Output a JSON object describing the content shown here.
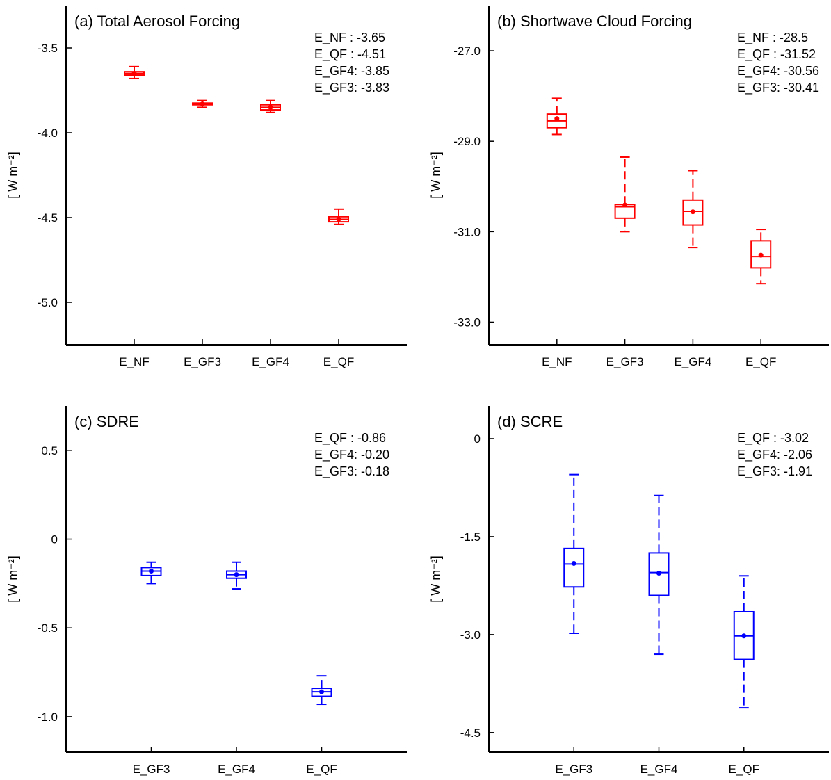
{
  "chart_data": [
    {
      "type": "box",
      "title": "(a) Total Aerosol Forcing",
      "ylabel": "[ W m⁻²]",
      "color": "#ff0000",
      "ylim": [
        -5.25,
        -3.25
      ],
      "yticks": [
        -3.5,
        -4.0,
        -4.5,
        -5.0
      ],
      "ytick_labels": [
        "-3.5",
        "-4.0",
        "-4.5",
        "-5.0"
      ],
      "legend_placement": "top-right",
      "stats_text": [
        "E_NF  : -3.65",
        "E_QF  : -4.51",
        "E_GF4: -3.85",
        "E_GF3: -3.83"
      ],
      "categories": [
        "E_NF",
        "E_GF3",
        "E_GF4",
        "E_QF"
      ],
      "boxes": [
        {
          "whisker_low": -3.68,
          "q1": -3.66,
          "median": -3.65,
          "q3": -3.64,
          "whisker_high": -3.61,
          "mean": -3.65
        },
        {
          "whisker_low": -3.85,
          "q1": -3.835,
          "median": -3.83,
          "q3": -3.825,
          "whisker_high": -3.81,
          "mean": -3.83
        },
        {
          "whisker_low": -3.88,
          "q1": -3.865,
          "median": -3.85,
          "q3": -3.835,
          "whisker_high": -3.81,
          "mean": -3.85
        },
        {
          "whisker_low": -4.54,
          "q1": -4.525,
          "median": -4.51,
          "q3": -4.495,
          "whisker_high": -4.45,
          "mean": -4.51
        }
      ]
    },
    {
      "type": "box",
      "title": "(b) Shortwave Cloud Forcing",
      "ylabel": "[ W m⁻²]",
      "color": "#ff0000",
      "ylim": [
        -33.5,
        -26.0
      ],
      "yticks": [
        -27.0,
        -29.0,
        -31.0,
        -33.0
      ],
      "ytick_labels": [
        "-27.0",
        "-29.0",
        "-31.0",
        "-33.0"
      ],
      "legend_placement": "top-right",
      "stats_text": [
        "E_NF  : -28.5",
        "E_QF  : -31.52",
        "E_GF4: -30.56",
        "E_GF3: -30.41"
      ],
      "categories": [
        "E_NF",
        "E_GF3",
        "E_GF4",
        "E_QF"
      ],
      "boxes": [
        {
          "whisker_low": -28.85,
          "q1": -28.7,
          "median": -28.55,
          "q3": -28.4,
          "whisker_high": -28.05,
          "mean": -28.5
        },
        {
          "whisker_low": -31.0,
          "q1": -30.7,
          "median": -30.45,
          "q3": -30.4,
          "whisker_high": -29.35,
          "mean": -30.41
        },
        {
          "whisker_low": -31.35,
          "q1": -30.85,
          "median": -30.55,
          "q3": -30.3,
          "whisker_high": -29.65,
          "mean": -30.56
        },
        {
          "whisker_low": -32.15,
          "q1": -31.8,
          "median": -31.55,
          "q3": -31.2,
          "whisker_high": -30.95,
          "mean": -31.52
        }
      ]
    },
    {
      "type": "box",
      "title": "(c) SDRE",
      "ylabel": "[ W m⁻²]",
      "color": "#0000ff",
      "ylim": [
        -1.2,
        0.75
      ],
      "yticks": [
        0.5,
        0,
        -0.5,
        -1.0
      ],
      "ytick_labels": [
        "0.5",
        "0",
        "-0.5",
        "-1.0"
      ],
      "legend_placement": "top-right",
      "stats_text": [
        "E_QF  : -0.86",
        "E_GF4: -0.20",
        "E_GF3: -0.18"
      ],
      "categories": [
        "E_GF3",
        "E_GF4",
        "E_QF"
      ],
      "boxes": [
        {
          "whisker_low": -0.25,
          "q1": -0.205,
          "median": -0.18,
          "q3": -0.16,
          "whisker_high": -0.13,
          "mean": -0.18
        },
        {
          "whisker_low": -0.28,
          "q1": -0.22,
          "median": -0.2,
          "q3": -0.18,
          "whisker_high": -0.13,
          "mean": -0.2
        },
        {
          "whisker_low": -0.93,
          "q1": -0.885,
          "median": -0.86,
          "q3": -0.84,
          "whisker_high": -0.77,
          "mean": -0.86
        }
      ]
    },
    {
      "type": "box",
      "title": "(d) SCRE",
      "ylabel": "[ W m⁻²]",
      "color": "#0000ff",
      "ylim": [
        -4.8,
        0.5
      ],
      "yticks": [
        0,
        -1.5,
        -3.0,
        -4.5
      ],
      "ytick_labels": [
        "0",
        "-1.5",
        "-3.0",
        "-4.5"
      ],
      "legend_placement": "top-right",
      "stats_text": [
        "E_QF  : -3.02",
        "E_GF4: -2.06",
        "E_GF3: -1.91"
      ],
      "categories": [
        "E_GF3",
        "E_GF4",
        "E_QF"
      ],
      "boxes": [
        {
          "whisker_low": -2.98,
          "q1": -2.27,
          "median": -1.92,
          "q3": -1.68,
          "whisker_high": -0.55,
          "mean": -1.91
        },
        {
          "whisker_low": -3.3,
          "q1": -2.4,
          "median": -2.05,
          "q3": -1.75,
          "whisker_high": -0.87,
          "mean": -2.06
        },
        {
          "whisker_low": -4.12,
          "q1": -3.38,
          "median": -3.02,
          "q3": -2.65,
          "whisker_high": -2.1,
          "mean": -3.02
        }
      ]
    }
  ]
}
